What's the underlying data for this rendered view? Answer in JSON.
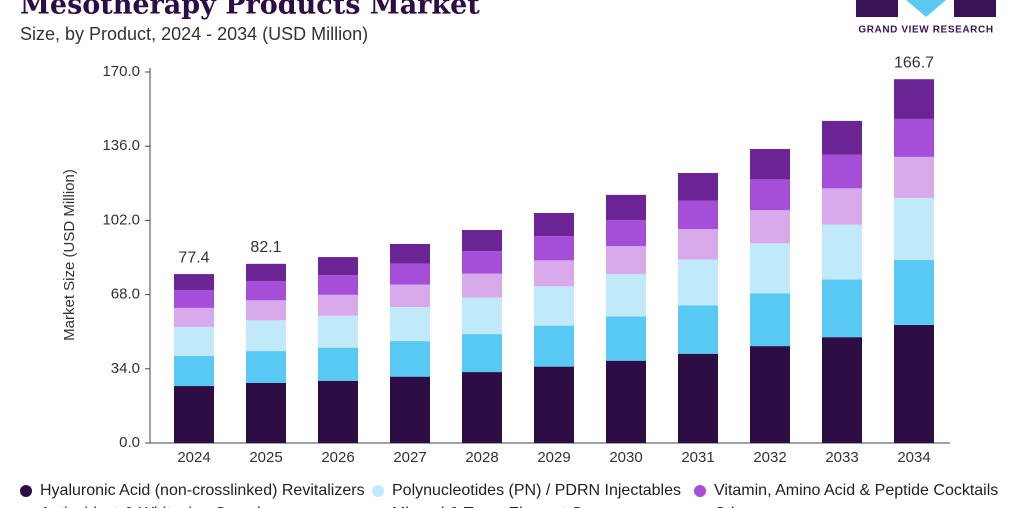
{
  "chart_data": {
    "type": "stacked_bar",
    "title": "Mesotherapy Products Market",
    "subtitle": "Size, by Product, 2024 - 2034 (USD Million)",
    "brand": "GRAND VIEW RESEARCH",
    "y_label": "Market Size (USD Million)",
    "categories": [
      "2024",
      "2025",
      "2026",
      "2027",
      "2028",
      "2029",
      "2030",
      "2031",
      "2032",
      "2033",
      "2034"
    ],
    "series": [
      {
        "name": "Hyaluronic Acid (non-crosslinked) Revitalizers",
        "color": "#2d0e44",
        "values": [
          26.1,
          27.5,
          28.5,
          30.4,
          32.5,
          35.0,
          37.7,
          40.9,
          44.4,
          48.5,
          54.1
        ]
      },
      {
        "name": "Mineral & Trace Element Serums",
        "color": "#57c9f2",
        "values": [
          13.8,
          14.6,
          15.2,
          16.3,
          17.4,
          18.8,
          20.3,
          22.1,
          24.1,
          26.4,
          29.8
        ]
      },
      {
        "name": "Polynucleotides (PN) / PDRN Injectables",
        "color": "#c0e9fa",
        "values": [
          13.3,
          14.1,
          14.6,
          15.6,
          16.7,
          18.0,
          19.4,
          21.1,
          23.0,
          25.2,
          28.4
        ]
      },
      {
        "name": "Antioxidant & Whitening Complexes",
        "color": "#d9aaeb",
        "values": [
          8.7,
          9.2,
          9.6,
          10.3,
          11.0,
          11.9,
          12.8,
          13.9,
          15.2,
          16.6,
          18.8
        ]
      },
      {
        "name": "Vitamin, Amino Acid & Peptide Cocktails",
        "color": "#a54fd8",
        "values": [
          8.2,
          8.7,
          9.0,
          9.6,
          10.3,
          11.1,
          12.0,
          13.0,
          14.1,
          15.4,
          17.4
        ]
      },
      {
        "name": "Others",
        "color": "#6b2493",
        "values": [
          7.3,
          8.0,
          8.3,
          9.0,
          9.7,
          10.6,
          11.5,
          12.7,
          13.9,
          15.5,
          18.2
        ]
      }
    ],
    "totals": [
      {
        "category": "2024",
        "value": 77.4
      },
      {
        "category": "2025",
        "value": 82.1
      },
      {
        "category": "2034",
        "value": 166.7
      }
    ],
    "ylim": [
      0,
      170
    ],
    "yticks": [
      {
        "value": 0,
        "label": "0.0"
      },
      {
        "value": 34,
        "label": "34.0"
      },
      {
        "value": 68,
        "label": "68.0"
      },
      {
        "value": 102,
        "label": "102.0"
      },
      {
        "value": 136,
        "label": "136.0"
      },
      {
        "value": 170,
        "label": "170.0"
      }
    ],
    "grid": false
  }
}
